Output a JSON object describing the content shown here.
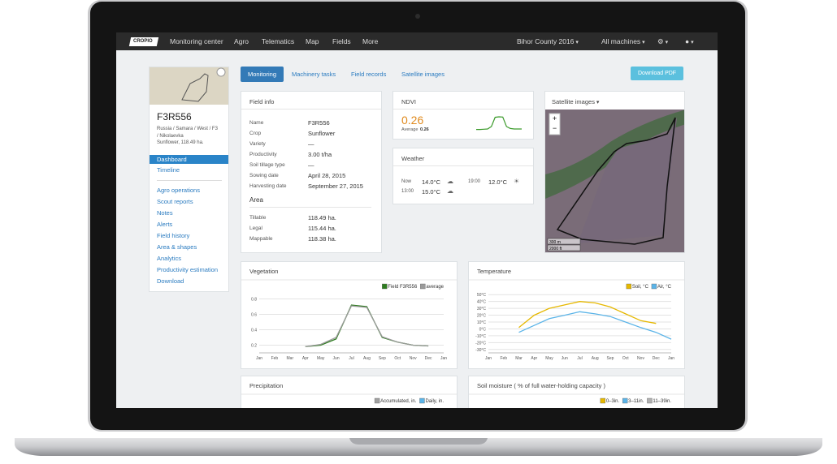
{
  "nav": {
    "logo": "CROPIO",
    "items": [
      "Monitoring center",
      "Agro",
      "Telematics",
      "Map",
      "Fields",
      "More"
    ],
    "right": [
      "Bihor County 2016",
      "All machines"
    ]
  },
  "sidebar": {
    "title": "F3R556",
    "address": [
      "Russia / Samara / West / F3",
      "/ Nikolaevka",
      "Sunflower, 118.49 ha."
    ],
    "menu_top": [
      "Dashboard",
      "Timeline"
    ],
    "menu": [
      "Agro operations",
      "Scout reports",
      "Notes",
      "Alerts",
      "Field history",
      "Area & shapes",
      "Analytics",
      "Productivity estimation",
      "Download"
    ]
  },
  "tabs": [
    "Monitoring",
    "Machinery tasks",
    "Field records",
    "Satellite images"
  ],
  "download": "Download PDF",
  "field_info": {
    "title": "Field info",
    "rows": [
      [
        "Name",
        "F3R556"
      ],
      [
        "Crop",
        "Sunflower"
      ],
      [
        "Variety",
        "—"
      ],
      [
        "Productivity",
        "3.00 t/ha"
      ],
      [
        "Soil tillage type",
        "—"
      ],
      [
        "Sowing date",
        "April 28, 2015"
      ],
      [
        "Harvesting date",
        "September 27, 2015"
      ]
    ],
    "area_title": "Area",
    "area_rows": [
      [
        "Tillable",
        "118.49 ha."
      ],
      [
        "Legal",
        "115.44 ha."
      ],
      [
        "Mappable",
        "118.38 ha."
      ]
    ]
  },
  "ndvi": {
    "title": "NDVI",
    "value": "0.26",
    "average_label": "Average",
    "average": "0.26",
    "sparkline": [
      0.18,
      0.18,
      0.19,
      0.2,
      0.3,
      0.68,
      0.7,
      0.69,
      0.3,
      0.22,
      0.2,
      0.2,
      0.2
    ]
  },
  "weather": {
    "title": "Weather",
    "items": [
      {
        "time": "Now",
        "temp": "14.0°C"
      },
      {
        "time": "19:00",
        "temp": "12.0°C"
      },
      {
        "time": "13:00",
        "temp": "15.0°C"
      }
    ]
  },
  "satellite": {
    "title": "Satellite images",
    "zoom": [
      "+",
      "−"
    ],
    "scale": [
      "300 m",
      "2000 ft"
    ]
  },
  "chart_data": [
    {
      "type": "line",
      "title": "Vegetation",
      "categories": [
        "Jan",
        "Feb",
        "Mar",
        "Apr",
        "May",
        "Jun",
        "Jul",
        "Aug",
        "Sep",
        "Oct",
        "Nov",
        "Dec",
        "Jan"
      ],
      "series": [
        {
          "name": "Field F3R556",
          "color": "#2e7d1f",
          "values": [
            null,
            null,
            null,
            0.18,
            0.2,
            0.28,
            0.72,
            0.7,
            0.3,
            0.24,
            0.2,
            0.19,
            null
          ]
        },
        {
          "name": "average",
          "color": "#9a9a9a",
          "values": [
            null,
            null,
            null,
            0.18,
            0.21,
            0.3,
            0.71,
            0.69,
            0.31,
            0.24,
            0.2,
            0.19,
            null
          ]
        }
      ],
      "ylim": [
        0.1,
        0.9
      ],
      "yticks": [
        0.2,
        0.4,
        0.6,
        0.8
      ],
      "grid": true
    },
    {
      "type": "line",
      "title": "Temperature",
      "categories": [
        "Jan",
        "Feb",
        "Mar",
        "Apr",
        "May",
        "Jun",
        "Jul",
        "Aug",
        "Sep",
        "Oct",
        "Nov",
        "Dec",
        "Jan"
      ],
      "series": [
        {
          "name": "Soil, °C",
          "color": "#e6b800",
          "values": [
            null,
            null,
            2,
            20,
            30,
            35,
            40,
            38,
            32,
            22,
            12,
            8,
            null
          ]
        },
        {
          "name": "Air, °C",
          "color": "#5bb4e8",
          "values": [
            null,
            null,
            -5,
            5,
            15,
            20,
            25,
            22,
            18,
            10,
            2,
            -5,
            -15
          ]
        }
      ],
      "ylim": [
        -35,
        55
      ],
      "yticks": [
        {
          "value": 50,
          "label": "50°C"
        },
        {
          "value": 40,
          "label": "40°C"
        },
        {
          "value": 30,
          "label": "30°C"
        },
        {
          "value": 20,
          "label": "20°C"
        },
        {
          "value": 10,
          "label": "10°C"
        },
        {
          "value": 0,
          "label": "0°C"
        },
        {
          "value": -10,
          "label": "-10°C"
        },
        {
          "value": -20,
          "label": "-20°C"
        },
        {
          "value": -30,
          "label": "-30°C"
        }
      ],
      "grid": true
    },
    {
      "type": "line",
      "title": "Precipitation",
      "series": [
        {
          "name": "Accumulated, in.",
          "color": "#a0a0a0"
        },
        {
          "name": "Daily, in.",
          "color": "#5bb4e8"
        }
      ]
    },
    {
      "type": "line",
      "title": "Soil moisture ( % of full water-holding capacity )",
      "series": [
        {
          "name": "0–3in.",
          "color": "#e6b800"
        },
        {
          "name": "3–11in.",
          "color": "#5bb4e8"
        },
        {
          "name": "11–39in.",
          "color": "#b0b0b0"
        }
      ]
    }
  ]
}
